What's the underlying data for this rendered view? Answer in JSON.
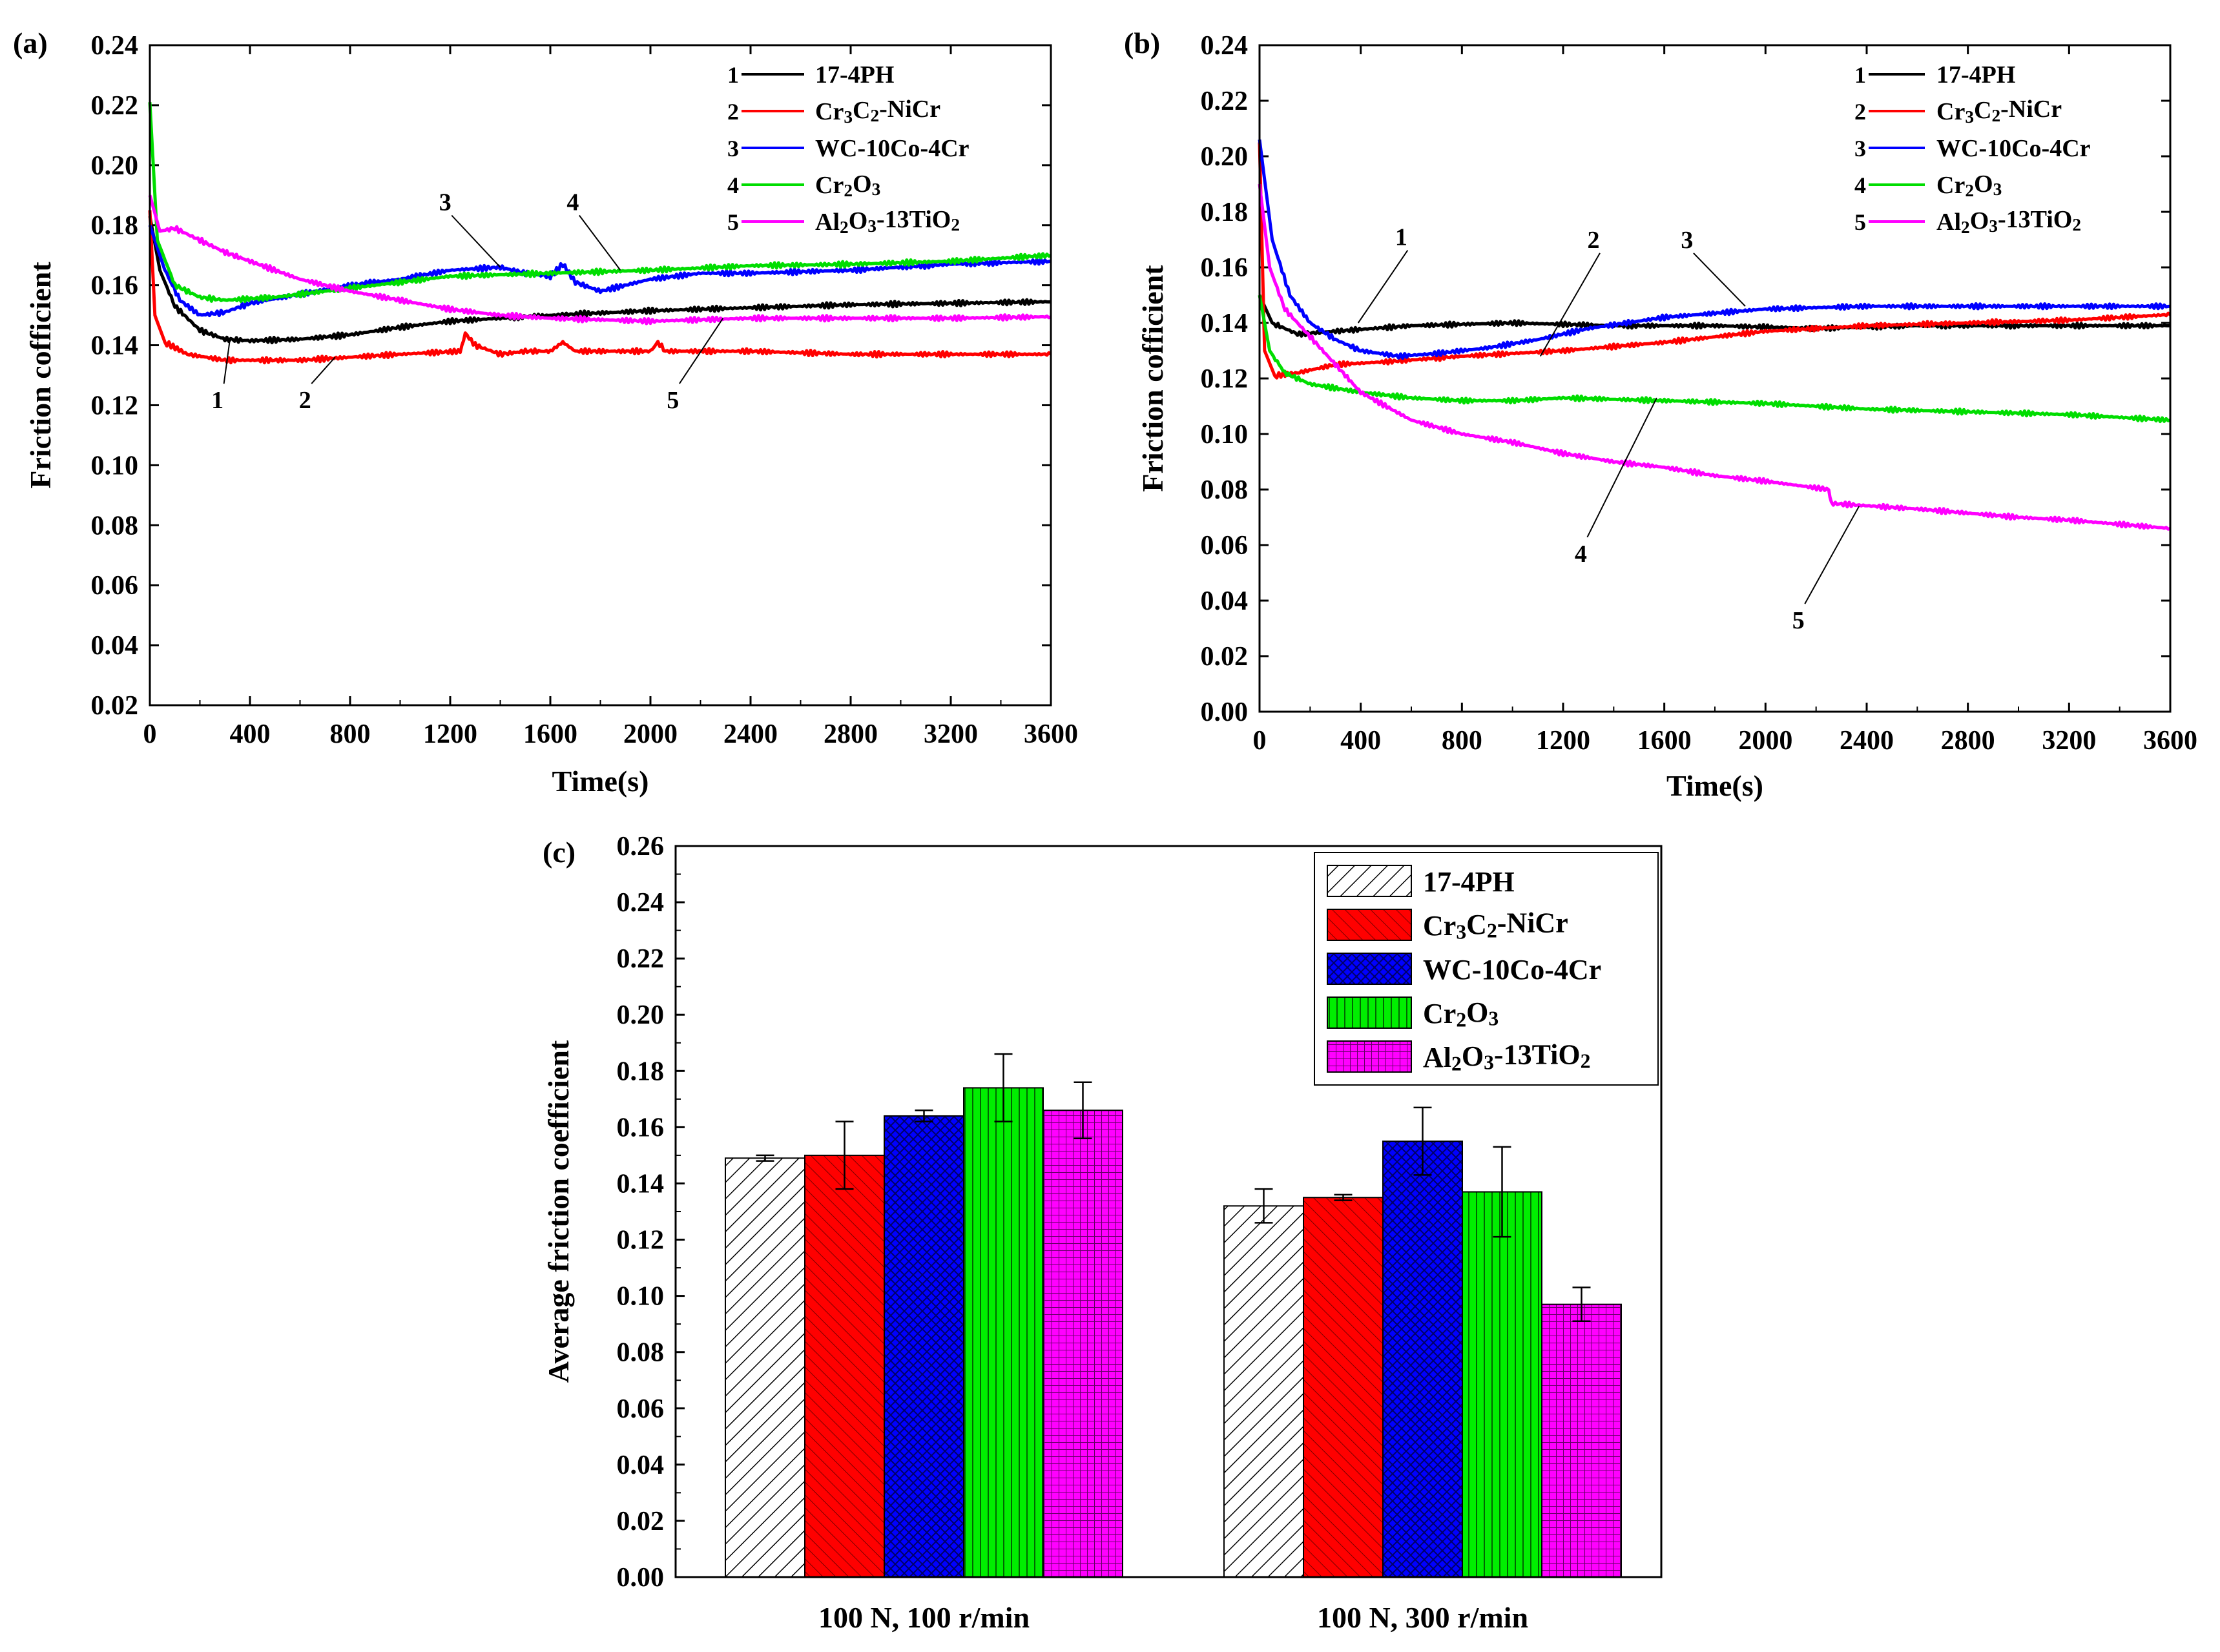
{
  "figure": {
    "panels": {
      "a": "(a)",
      "b": "(b)",
      "c": "(c)"
    }
  },
  "chart_data": [
    {
      "id": "a",
      "type": "line",
      "panel_label": "(a)",
      "xlabel": "Time(s)",
      "ylabel": "Friction cofficient",
      "xlim": [
        0,
        3600
      ],
      "ylim": [
        0.02,
        0.24
      ],
      "xticks": [
        "0",
        "400",
        "800",
        "1200",
        "1600",
        "2000",
        "2400",
        "2800",
        "3200",
        "3600"
      ],
      "yticks": [
        "0.02",
        "0.04",
        "0.06",
        "0.08",
        "0.10",
        "0.12",
        "0.14",
        "0.16",
        "0.18",
        "0.20",
        "0.22",
        "0.24"
      ],
      "legend_position": "top-right",
      "series": [
        {
          "num": "1",
          "name": "17-4PH",
          "color": "#000000",
          "points": [
            [
              0,
              0.183
            ],
            [
              40,
              0.165
            ],
            [
              100,
              0.153
            ],
            [
              200,
              0.145
            ],
            [
              300,
              0.142
            ],
            [
              400,
              0.1415
            ],
            [
              600,
              0.142
            ],
            [
              800,
              0.1435
            ],
            [
              1000,
              0.146
            ],
            [
              1200,
              0.148
            ],
            [
              1600,
              0.15
            ],
            [
              2000,
              0.1515
            ],
            [
              2400,
              0.1525
            ],
            [
              2800,
              0.1535
            ],
            [
              3200,
              0.154
            ],
            [
              3600,
              0.1545
            ]
          ]
        },
        {
          "num": "2",
          "name": "Cr3C2-NiCr",
          "color": "#ff0000",
          "points": [
            [
              0,
              0.185
            ],
            [
              20,
              0.15
            ],
            [
              60,
              0.141
            ],
            [
              150,
              0.137
            ],
            [
              300,
              0.135
            ],
            [
              600,
              0.135
            ],
            [
              800,
              0.136
            ],
            [
              1000,
              0.137
            ],
            [
              1240,
              0.138
            ],
            [
              1260,
              0.144
            ],
            [
              1300,
              0.14
            ],
            [
              1400,
              0.137
            ],
            [
              1500,
              0.138
            ],
            [
              1600,
              0.138
            ],
            [
              1650,
              0.141
            ],
            [
              1700,
              0.138
            ],
            [
              2000,
              0.138
            ],
            [
              2030,
              0.141
            ],
            [
              2060,
              0.138
            ],
            [
              2400,
              0.138
            ],
            [
              2800,
              0.137
            ],
            [
              3200,
              0.137
            ],
            [
              3600,
              0.137
            ]
          ]
        },
        {
          "num": "3",
          "name": "WC-10Co-4Cr",
          "color": "#0000ff",
          "points": [
            [
              0,
              0.18
            ],
            [
              60,
              0.165
            ],
            [
              120,
              0.155
            ],
            [
              200,
              0.15
            ],
            [
              300,
              0.151
            ],
            [
              400,
              0.154
            ],
            [
              600,
              0.157
            ],
            [
              800,
              0.16
            ],
            [
              1000,
              0.162
            ],
            [
              1200,
              0.165
            ],
            [
              1400,
              0.166
            ],
            [
              1500,
              0.164
            ],
            [
              1600,
              0.163
            ],
            [
              1650,
              0.167
            ],
            [
              1700,
              0.161
            ],
            [
              1800,
              0.158
            ],
            [
              2000,
              0.162
            ],
            [
              2200,
              0.164
            ],
            [
              2400,
              0.164
            ],
            [
              2800,
              0.165
            ],
            [
              3200,
              0.167
            ],
            [
              3600,
              0.168
            ]
          ]
        },
        {
          "num": "4",
          "name": "Cr2O3",
          "color": "#00dd00",
          "points": [
            [
              0,
              0.221
            ],
            [
              30,
              0.175
            ],
            [
              100,
              0.16
            ],
            [
              200,
              0.156
            ],
            [
              300,
              0.155
            ],
            [
              500,
              0.156
            ],
            [
              800,
              0.159
            ],
            [
              1200,
              0.163
            ],
            [
              1600,
              0.164
            ],
            [
              2000,
              0.165
            ],
            [
              2400,
              0.1665
            ],
            [
              2800,
              0.167
            ],
            [
              3200,
              0.168
            ],
            [
              3600,
              0.17
            ]
          ]
        },
        {
          "num": "5",
          "name": "Al2O3-13TiO2",
          "color": "#ff00ff",
          "points": [
            [
              0,
              0.19
            ],
            [
              40,
              0.178
            ],
            [
              100,
              0.179
            ],
            [
              200,
              0.175
            ],
            [
              300,
              0.171
            ],
            [
              400,
              0.168
            ],
            [
              600,
              0.162
            ],
            [
              800,
              0.158
            ],
            [
              1000,
              0.155
            ],
            [
              1200,
              0.152
            ],
            [
              1400,
              0.15
            ],
            [
              1600,
              0.149
            ],
            [
              2000,
              0.148
            ],
            [
              2400,
              0.149
            ],
            [
              2800,
              0.149
            ],
            [
              3200,
              0.149
            ],
            [
              3600,
              0.1495
            ]
          ]
        }
      ],
      "annotations": [
        {
          "text": "1",
          "x": 270,
          "y": 0.119,
          "tx": 320,
          "ty": 0.142
        },
        {
          "text": "2",
          "x": 620,
          "y": 0.119,
          "tx": 740,
          "ty": 0.136
        },
        {
          "text": "3",
          "x": 1180,
          "y": 0.185,
          "tx": 1400,
          "ty": 0.166
        },
        {
          "text": "4",
          "x": 1690,
          "y": 0.185,
          "tx": 1880,
          "ty": 0.165
        },
        {
          "text": "5",
          "x": 2090,
          "y": 0.119,
          "tx": 2290,
          "ty": 0.149
        }
      ]
    },
    {
      "id": "b",
      "type": "line",
      "panel_label": "(b)",
      "xlabel": "Time(s)",
      "ylabel": "Friction cofficient",
      "xlim": [
        0,
        3600
      ],
      "ylim": [
        0.0,
        0.24
      ],
      "xticks": [
        "0",
        "400",
        "800",
        "1200",
        "1600",
        "2000",
        "2400",
        "2800",
        "3200",
        "3600"
      ],
      "yticks": [
        "0.00",
        "0.02",
        "0.04",
        "0.06",
        "0.08",
        "0.10",
        "0.12",
        "0.14",
        "0.16",
        "0.18",
        "0.20",
        "0.22",
        "0.24"
      ],
      "legend_position": "top-right",
      "series": [
        {
          "num": "1",
          "name": "17-4PH",
          "color": "#000000",
          "points": [
            [
              0,
              0.15
            ],
            [
              50,
              0.14
            ],
            [
              150,
              0.136
            ],
            [
              300,
              0.137
            ],
            [
              600,
              0.139
            ],
            [
              1000,
              0.14
            ],
            [
              1400,
              0.139
            ],
            [
              1800,
              0.139
            ],
            [
              2200,
              0.138
            ],
            [
              2600,
              0.139
            ],
            [
              3000,
              0.139
            ],
            [
              3600,
              0.139
            ]
          ]
        },
        {
          "num": "2",
          "name": "Cr3C2-NiCr",
          "color": "#ff0000",
          "points": [
            [
              0,
              0.205
            ],
            [
              20,
              0.13
            ],
            [
              60,
              0.121
            ],
            [
              150,
              0.122
            ],
            [
              300,
              0.125
            ],
            [
              500,
              0.126
            ],
            [
              800,
              0.128
            ],
            [
              1200,
              0.13
            ],
            [
              1600,
              0.133
            ],
            [
              2000,
              0.137
            ],
            [
              2400,
              0.139
            ],
            [
              2800,
              0.14
            ],
            [
              3200,
              0.141
            ],
            [
              3600,
              0.143
            ]
          ]
        },
        {
          "num": "3",
          "name": "WC-10Co-4Cr",
          "color": "#0000ff",
          "points": [
            [
              0,
              0.206
            ],
            [
              50,
              0.17
            ],
            [
              120,
              0.15
            ],
            [
              200,
              0.14
            ],
            [
              300,
              0.134
            ],
            [
              400,
              0.13
            ],
            [
              550,
              0.128
            ],
            [
              700,
              0.129
            ],
            [
              900,
              0.131
            ],
            [
              1100,
              0.134
            ],
            [
              1300,
              0.138
            ],
            [
              1600,
              0.142
            ],
            [
              2000,
              0.145
            ],
            [
              2400,
              0.146
            ],
            [
              2800,
              0.146
            ],
            [
              3200,
              0.146
            ],
            [
              3600,
              0.146
            ]
          ]
        },
        {
          "num": "4",
          "name": "Cr2O3",
          "color": "#00dd00",
          "points": [
            [
              0,
              0.15
            ],
            [
              40,
              0.13
            ],
            [
              100,
              0.122
            ],
            [
              200,
              0.118
            ],
            [
              400,
              0.115
            ],
            [
              600,
              0.113
            ],
            [
              800,
              0.112
            ],
            [
              1000,
              0.112
            ],
            [
              1200,
              0.113
            ],
            [
              1600,
              0.112
            ],
            [
              2000,
              0.111
            ],
            [
              2400,
              0.109
            ],
            [
              2800,
              0.108
            ],
            [
              3200,
              0.107
            ],
            [
              3600,
              0.105
            ]
          ]
        },
        {
          "num": "5",
          "name": "Al2O3-13TiO2",
          "color": "#ff00ff",
          "points": [
            [
              0,
              0.19
            ],
            [
              40,
              0.16
            ],
            [
              100,
              0.145
            ],
            [
              200,
              0.135
            ],
            [
              300,
              0.125
            ],
            [
              400,
              0.115
            ],
            [
              600,
              0.105
            ],
            [
              800,
              0.1
            ],
            [
              1000,
              0.097
            ],
            [
              1200,
              0.093
            ],
            [
              1400,
              0.09
            ],
            [
              1600,
              0.088
            ],
            [
              1800,
              0.085
            ],
            [
              2000,
              0.083
            ],
            [
              2250,
              0.08
            ],
            [
              2260,
              0.075
            ],
            [
              2600,
              0.073
            ],
            [
              3000,
              0.07
            ],
            [
              3200,
              0.069
            ],
            [
              3600,
              0.066
            ]
          ]
        }
      ],
      "annotations": [
        {
          "text": "1",
          "x": 560,
          "y": 0.168,
          "tx": 390,
          "ty": 0.14
        },
        {
          "text": "2",
          "x": 1320,
          "y": 0.167,
          "tx": 1110,
          "ty": 0.128
        },
        {
          "text": "3",
          "x": 1690,
          "y": 0.167,
          "tx": 1920,
          "ty": 0.146
        },
        {
          "text": "4",
          "x": 1270,
          "y": 0.054,
          "tx": 1570,
          "ty": 0.113
        },
        {
          "text": "5",
          "x": 2130,
          "y": 0.03,
          "tx": 2370,
          "ty": 0.074
        }
      ]
    },
    {
      "id": "c",
      "type": "bar",
      "panel_label": "(c)",
      "xlabel": "",
      "ylabel": "Average friction coefficient",
      "ylim": [
        0.0,
        0.26
      ],
      "yticks": [
        "0.00",
        "0.02",
        "0.04",
        "0.06",
        "0.08",
        "0.10",
        "0.12",
        "0.14",
        "0.16",
        "0.18",
        "0.20",
        "0.22",
        "0.24",
        "0.26"
      ],
      "categories": [
        "100 N, 100 r/min",
        "100 N, 300 r/min"
      ],
      "legend_position": "top-right",
      "series": [
        {
          "name": "17-4PH",
          "color": "#ffffff",
          "pattern": "diag-black",
          "values": [
            0.149,
            0.132
          ],
          "errors": [
            0.001,
            0.006
          ]
        },
        {
          "name": "Cr3C2-NiCr",
          "color": "#ff0000",
          "pattern": "diag-red",
          "values": [
            0.15,
            0.135
          ],
          "errors": [
            0.012,
            0.001
          ]
        },
        {
          "name": "WC-10Co-4Cr",
          "color": "#0000ff",
          "pattern": "cross-blue",
          "values": [
            0.164,
            0.155
          ],
          "errors": [
            0.002,
            0.012
          ]
        },
        {
          "name": "Cr2O3",
          "color": "#00ee00",
          "pattern": "vert-green",
          "values": [
            0.174,
            0.137
          ],
          "errors": [
            0.012,
            0.016
          ]
        },
        {
          "name": "Al2O3-13TiO2",
          "color": "#ff00ff",
          "pattern": "grid-magenta",
          "values": [
            0.166,
            0.097
          ],
          "errors": [
            0.01,
            0.006
          ]
        }
      ]
    }
  ]
}
